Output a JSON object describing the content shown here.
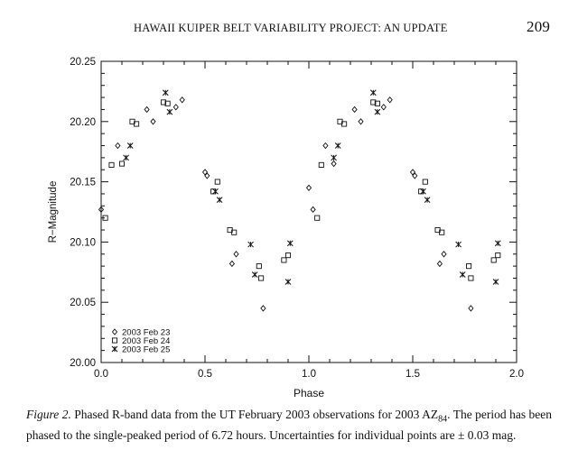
{
  "header": {
    "running_title": "HAWAII KUIPER BELT VARIABILITY PROJECT: AN UPDATE",
    "page_number": "209"
  },
  "chart_data": {
    "type": "scatter",
    "xlabel": "Phase",
    "ylabel": "R−Magnitude",
    "xlim": [
      0.0,
      2.0
    ],
    "ylim": [
      20.0,
      20.25
    ],
    "x_ticks": [
      "0.0",
      "0.5",
      "1.0",
      "1.5",
      "2.0"
    ],
    "y_ticks": [
      "20.00",
      "20.05",
      "20.10",
      "20.15",
      "20.20",
      "20.25"
    ],
    "grid": false,
    "legend_position": "bottom-left",
    "series": [
      {
        "name": "2003 Feb 23",
        "marker": "diamond",
        "points": [
          [
            0.0,
            20.127
          ],
          [
            0.08,
            20.18
          ],
          [
            0.22,
            20.21
          ],
          [
            0.25,
            20.2
          ],
          [
            0.36,
            20.212
          ],
          [
            0.39,
            20.218
          ],
          [
            0.5,
            20.158
          ],
          [
            0.51,
            20.155
          ],
          [
            0.63,
            20.082
          ],
          [
            0.65,
            20.09
          ],
          [
            0.78,
            20.045
          ],
          [
            1.0,
            20.145
          ],
          [
            1.02,
            20.127
          ],
          [
            1.08,
            20.18
          ],
          [
            1.12,
            20.165
          ],
          [
            1.22,
            20.21
          ],
          [
            1.25,
            20.2
          ],
          [
            1.36,
            20.212
          ],
          [
            1.39,
            20.218
          ],
          [
            1.5,
            20.158
          ],
          [
            1.51,
            20.155
          ],
          [
            1.63,
            20.082
          ],
          [
            1.65,
            20.09
          ],
          [
            1.78,
            20.045
          ]
        ]
      },
      {
        "name": "2003 Feb 24",
        "marker": "square",
        "points": [
          [
            0.02,
            20.12
          ],
          [
            0.05,
            20.164
          ],
          [
            0.1,
            20.165
          ],
          [
            0.15,
            20.2
          ],
          [
            0.17,
            20.198
          ],
          [
            0.3,
            20.216
          ],
          [
            0.32,
            20.215
          ],
          [
            0.54,
            20.142
          ],
          [
            0.56,
            20.15
          ],
          [
            0.62,
            20.11
          ],
          [
            0.64,
            20.108
          ],
          [
            0.76,
            20.08
          ],
          [
            0.77,
            20.07
          ],
          [
            0.88,
            20.085
          ],
          [
            0.9,
            20.089
          ],
          [
            1.04,
            20.12
          ],
          [
            1.06,
            20.164
          ],
          [
            1.15,
            20.2
          ],
          [
            1.17,
            20.198
          ],
          [
            1.31,
            20.216
          ],
          [
            1.33,
            20.215
          ],
          [
            1.54,
            20.142
          ],
          [
            1.56,
            20.15
          ],
          [
            1.62,
            20.11
          ],
          [
            1.64,
            20.108
          ],
          [
            1.77,
            20.08
          ],
          [
            1.78,
            20.07
          ],
          [
            1.89,
            20.085
          ],
          [
            1.91,
            20.089
          ]
        ]
      },
      {
        "name": "2003 Feb 25",
        "marker": "asterisk",
        "points": [
          [
            0.12,
            20.17
          ],
          [
            0.14,
            20.18
          ],
          [
            0.31,
            20.224
          ],
          [
            0.33,
            20.208
          ],
          [
            0.55,
            20.142
          ],
          [
            0.57,
            20.135
          ],
          [
            0.72,
            20.098
          ],
          [
            0.74,
            20.073
          ],
          [
            0.9,
            20.067
          ],
          [
            0.91,
            20.099
          ],
          [
            1.12,
            20.17
          ],
          [
            1.14,
            20.18
          ],
          [
            1.31,
            20.224
          ],
          [
            1.33,
            20.208
          ],
          [
            1.55,
            20.142
          ],
          [
            1.57,
            20.135
          ],
          [
            1.72,
            20.098
          ],
          [
            1.74,
            20.073
          ],
          [
            1.9,
            20.067
          ],
          [
            1.91,
            20.099
          ]
        ]
      }
    ]
  },
  "caption": {
    "figure_label": "Figure 2.",
    "text_before": "Phased R-band data from the UT February 2003 observations for 2003 AZ",
    "subscript": "84",
    "text_after": ". The period has been phased to the single-peaked period of 6.72 hours. Uncertainties for individual points are ± 0.03 mag."
  }
}
